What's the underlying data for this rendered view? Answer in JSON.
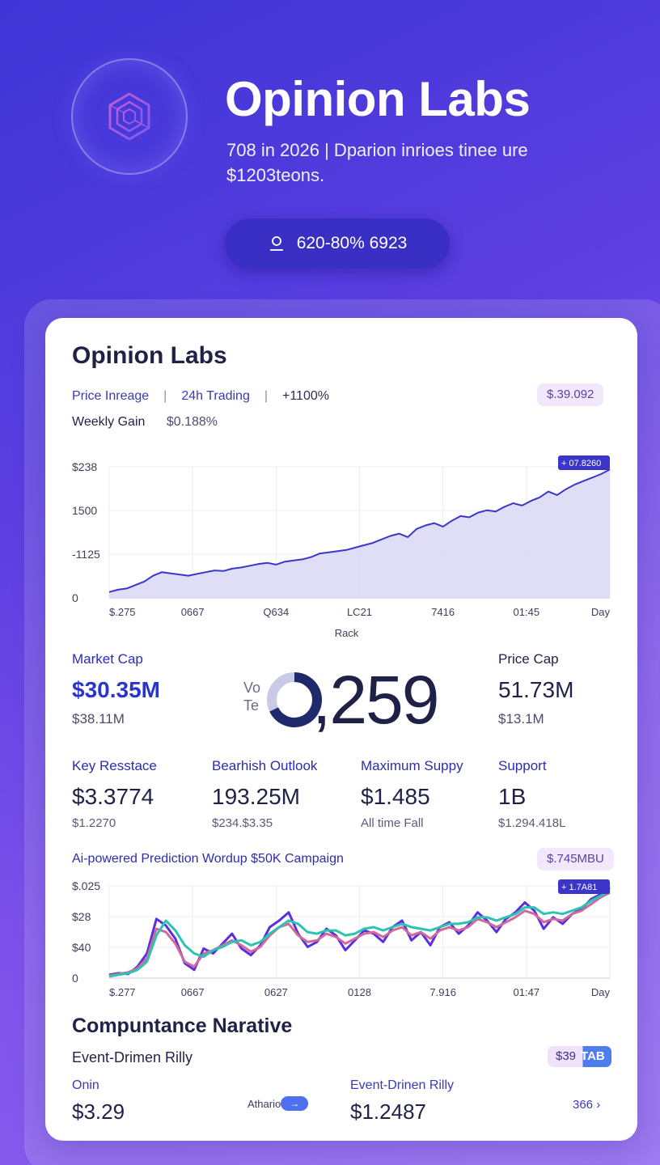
{
  "hero": {
    "title": "Opinion Labs",
    "subtitle_line1": "708 in 2026 | Dparion inrioes tinee ure",
    "subtitle_line2": "$1203teons.",
    "pill_label": "620-80% 6923",
    "logo_icon": "hexagon-logo-icon",
    "pill_icon": "user-icon"
  },
  "card": {
    "title": "Opinion Labs",
    "tabs": [
      "Price Inreage",
      "24h Trading",
      "+1100%"
    ],
    "top_badge": "$.39.092",
    "weekly_label": "Weekly Gain",
    "weekly_value": "$0.188%"
  },
  "chart_data": [
    {
      "type": "area",
      "title": "",
      "xlabel": "Rack",
      "ylabel": "",
      "y_tick_labels": [
        "$238",
        "1500",
        "-1125",
        "0"
      ],
      "x_tick_labels": [
        "$.275",
        "0667",
        "Q634",
        "LC21",
        "7416",
        "01:45",
        "Day"
      ],
      "end_label": "+ 07.8260",
      "series": [
        {
          "values": [
            10,
            14,
            16,
            22,
            28,
            38,
            44,
            42,
            40,
            38,
            41,
            44,
            47,
            46,
            50,
            52,
            55,
            58,
            60,
            57,
            62,
            64,
            66,
            70,
            76,
            78,
            80,
            82,
            86,
            90,
            94,
            100,
            106,
            110,
            104,
            118,
            124,
            128,
            122,
            132,
            140,
            138,
            146,
            150,
            148,
            156,
            162,
            158,
            166,
            172,
            182,
            176,
            186,
            194,
            200,
            206,
            212,
            220
          ]
        }
      ],
      "color": "#3b36c9",
      "fill": "#dcdaf5"
    },
    {
      "type": "line",
      "title": "Ai-powered Prediction Wordup $50K Campaign",
      "badge": "$.745MBU",
      "end_label": "+ 1.7A81",
      "y_tick_labels": [
        "$.025",
        "$28",
        "$40",
        "0"
      ],
      "x_tick_labels": [
        "$.277",
        "0667",
        "0627",
        "0128",
        "7.916",
        "01:47",
        "Day"
      ],
      "series": [
        {
          "color": "#5b2fe0",
          "values": [
            4,
            6,
            5,
            14,
            30,
            72,
            64,
            48,
            18,
            10,
            36,
            30,
            42,
            54,
            36,
            28,
            40,
            62,
            70,
            80,
            54,
            38,
            44,
            60,
            52,
            34,
            46,
            58,
            54,
            44,
            62,
            70,
            46,
            56,
            40,
            62,
            68,
            54,
            64,
            80,
            70,
            56,
            72,
            80,
            92,
            82,
            60,
            74,
            66,
            78,
            84,
            96,
            102,
            110
          ]
        },
        {
          "color": "#d06a9a",
          "values": [
            3,
            5,
            7,
            12,
            24,
            60,
            56,
            42,
            20,
            14,
            30,
            34,
            40,
            46,
            40,
            32,
            38,
            52,
            62,
            66,
            52,
            44,
            46,
            54,
            50,
            42,
            48,
            54,
            56,
            50,
            58,
            62,
            52,
            56,
            48,
            58,
            62,
            58,
            62,
            72,
            68,
            62,
            68,
            74,
            82,
            78,
            68,
            72,
            70,
            78,
            82,
            90,
            98,
            104
          ]
        },
        {
          "color": "#2cc4b0",
          "values": [
            2,
            4,
            6,
            10,
            20,
            52,
            70,
            58,
            40,
            30,
            26,
            34,
            38,
            44,
            46,
            40,
            44,
            54,
            62,
            70,
            66,
            56,
            54,
            58,
            58,
            52,
            54,
            60,
            62,
            58,
            62,
            66,
            62,
            60,
            58,
            62,
            66,
            66,
            68,
            74,
            74,
            70,
            74,
            78,
            86,
            86,
            78,
            80,
            78,
            82,
            86,
            94,
            100,
            106
          ]
        }
      ]
    }
  ],
  "stats_row1": [
    {
      "label": "Market Cap",
      "value": "$30.35M",
      "sub": "$38.11M"
    },
    {
      "label": "Price Cap",
      "value": "51.73M",
      "sub": "$13.1M"
    }
  ],
  "donut": {
    "side_text_1": "Vo",
    "side_text_2": "Te",
    "big_number": ",259",
    "fraction": 0.68
  },
  "stats_row2": [
    {
      "label": "Key Resstace",
      "value": "$3.3774",
      "sub": "$1.2270"
    },
    {
      "label": "Bearhish Outlook",
      "value": "193.25M",
      "sub": "$234.$3.35"
    },
    {
      "label": "Maximum Suppy",
      "value": "$1.485",
      "sub": "All time Fall"
    },
    {
      "label": "Support",
      "value": "1B",
      "sub": "$1.294.418L"
    }
  ],
  "narrative": {
    "title": "Compuntance Narative",
    "subtitle": "Event-Drimen Rilly",
    "badge_left": "$39",
    "badge_right": "TAB",
    "items": [
      {
        "label": "Onin",
        "value": "$3.29"
      },
      {
        "label": "Event-Drinen Rilly",
        "value": "$1.2487"
      }
    ],
    "advance_label": "Athario",
    "more_label": "366 ›"
  }
}
